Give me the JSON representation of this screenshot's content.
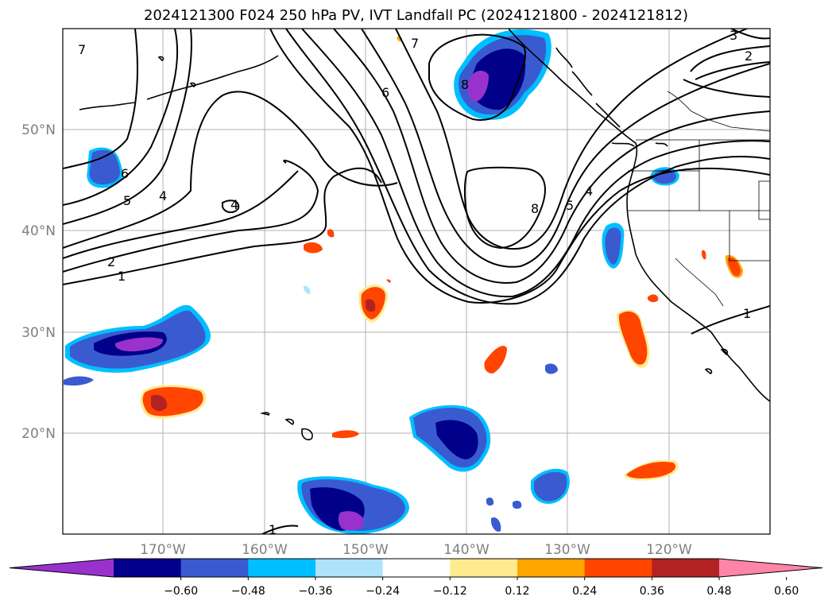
{
  "title": "2024121300 F024 250 hPa PV, IVT Landfall PC (2024121800 - 2024121812)",
  "map": {
    "lat_labels": [
      "50°N",
      "40°N",
      "30°N",
      "20°N"
    ],
    "lon_labels": [
      "170°W",
      "160°W",
      "150°W",
      "140°W",
      "130°W",
      "120°W"
    ],
    "contour_labels": [
      "7",
      "7",
      "6",
      "6",
      "5",
      "4",
      "4",
      "2",
      "1",
      "8",
      "8",
      "5",
      "4",
      "3",
      "2",
      "1",
      "1"
    ]
  },
  "colorbar": {
    "colors": [
      "#9932cc",
      "#00008b",
      "#3a5bd0",
      "#00bfff",
      "#aee3fb",
      "#ffffff",
      "#ffeb8f",
      "#ffa500",
      "#ff4500",
      "#b22222",
      "#ff85a8"
    ],
    "tick_labels": [
      "−0.60",
      "−0.48",
      "−0.36",
      "−0.24",
      "−0.12",
      "0.12",
      "0.24",
      "0.36",
      "0.48",
      "0.60"
    ]
  }
}
